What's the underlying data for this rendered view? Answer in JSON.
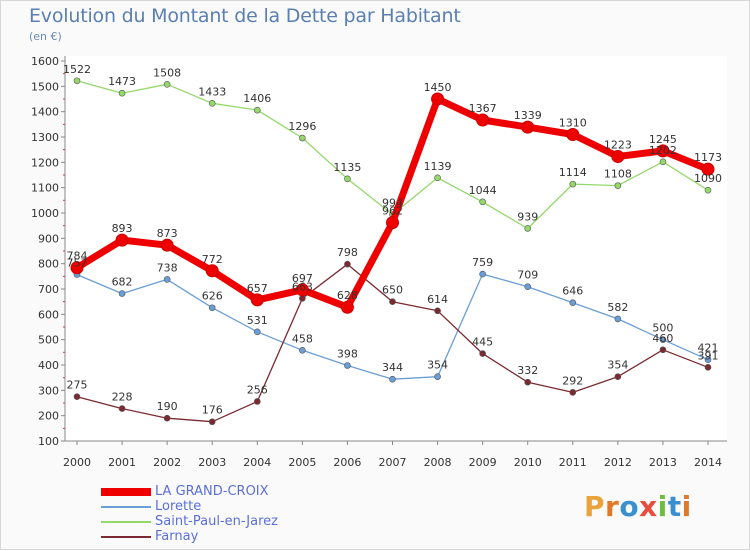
{
  "header": {
    "title": "Evolution du Montant de la Dette par Habitant",
    "unit": "(en €)"
  },
  "logo_text": "Proxiti",
  "logo_letters": [
    {
      "ch": "P",
      "color": "#e9a33a"
    },
    {
      "ch": "r",
      "color": "#e07a2a"
    },
    {
      "ch": "o",
      "color": "#3a8fd0"
    },
    {
      "ch": "x",
      "color": "#e84c3d"
    },
    {
      "ch": "i",
      "color": "#6cbf3c"
    },
    {
      "ch": "t",
      "color": "#3a8fd0"
    },
    {
      "ch": "i",
      "color": "#e07a2a"
    }
  ],
  "chart_data": {
    "type": "line",
    "title": "Evolution du Montant de la Dette par Habitant",
    "ylabel": "(en €)",
    "xlabel": "",
    "x": [
      "2000",
      "2001",
      "2002",
      "2003",
      "2004",
      "2005",
      "2006",
      "2007",
      "2008",
      "2009",
      "2010",
      "2011",
      "2012",
      "2013",
      "2014"
    ],
    "ylim": [
      100,
      1600
    ],
    "yticks": [
      100,
      200,
      300,
      400,
      500,
      600,
      700,
      800,
      900,
      1000,
      1100,
      1200,
      1300,
      1400,
      1500,
      1600
    ],
    "grid": false,
    "legend_position": "bottom-left",
    "series": [
      {
        "name": "LA GRAND-CROIX",
        "color": "#ee0000",
        "width": 7,
        "marker": 6,
        "values": [
          784,
          893,
          873,
          772,
          657,
          697,
          628,
          962,
          1450,
          1367,
          1339,
          1310,
          1223,
          1245,
          1173
        ],
        "labels": [
          "784",
          "893",
          "873",
          "772",
          "657",
          "697",
          "628",
          "962",
          "1450",
          "1367",
          "1339",
          "1310",
          "1223",
          "1245",
          "1173"
        ]
      },
      {
        "name": "Lorette",
        "color": "#6a9ed6",
        "width": 1.3,
        "marker": 3,
        "values": [
          757,
          682,
          738,
          626,
          531,
          458,
          398,
          344,
          354,
          759,
          709,
          646,
          582,
          500,
          421
        ],
        "labels": [
          "757",
          "682",
          "738",
          "626",
          "531",
          "458",
          "398",
          "344",
          "354",
          "759",
          "709",
          "646",
          "582",
          "500",
          "421"
        ]
      },
      {
        "name": "Saint-Paul-en-Jarez",
        "color": "#94d86a",
        "width": 1.3,
        "marker": 3,
        "values": [
          1522,
          1473,
          1508,
          1433,
          1406,
          1296,
          1135,
          994,
          1139,
          1044,
          939,
          1114,
          1108,
          1202,
          1090
        ],
        "labels": [
          "1522",
          "1473",
          "1508",
          "1433",
          "1406",
          "1296",
          "1135",
          "994",
          "1139",
          "1044",
          "939",
          "1114",
          "1108",
          "1202",
          "1090"
        ]
      },
      {
        "name": "Farnay",
        "color": "#7a2a30",
        "width": 1.3,
        "marker": 3,
        "values": [
          275,
          228,
          190,
          176,
          256,
          663,
          798,
          650,
          614,
          445,
          332,
          292,
          354,
          460,
          391
        ],
        "labels": [
          "275",
          "228",
          "190",
          "176",
          "256",
          "663",
          "798",
          "650",
          "614",
          "445",
          "332",
          "292",
          "354",
          "460",
          "391"
        ]
      }
    ]
  }
}
